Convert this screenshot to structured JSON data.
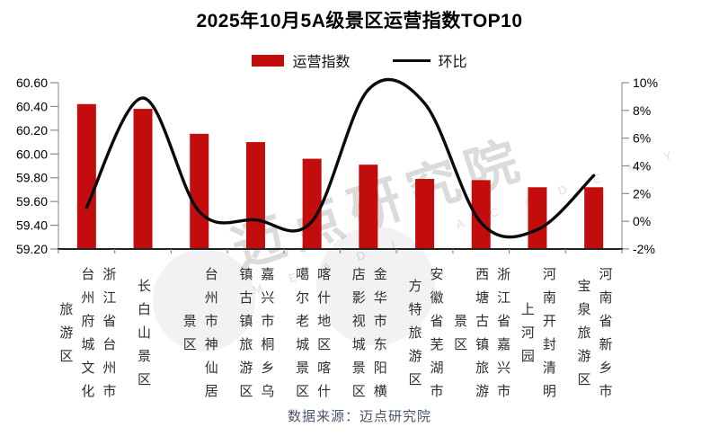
{
  "title": "2025年10月5A级景区运营指数TOP10",
  "legend": {
    "bar_label": "运营指数",
    "line_label": "环比"
  },
  "source_note": "数据来源：迈点研究院",
  "watermark": {
    "text": "迈点研究院",
    "subtext": "M E A D I N   A C A D E M Y"
  },
  "colors": {
    "bar": "#c30d0d",
    "line": "#0a0a0a",
    "spine": "#9a9a9a",
    "bottom_axis": "#222222",
    "tick": "#8a8a8a",
    "axis_text": "#000000",
    "category_text": "#2e2e2e",
    "source_text": "#4a566b"
  },
  "chart_data": {
    "type": "bar+line",
    "title": "2025年10月5A级景区运营指数TOP10",
    "categories": [
      "浙江省台州市台州府城文化旅游区",
      "长白山景区",
      "台州市神仙居景区",
      "嘉兴市桐乡乌镇古镇旅游区",
      "喀什地区喀什噶尔老城景区",
      "金华市东阳横店影视城景区",
      "安徽省芜湖市方特旅游区",
      "浙江省嘉兴市西塘古镇旅游景区",
      "河南开封清明上河园",
      "河南省新乡市宝泉旅游区"
    ],
    "series": [
      {
        "name": "运营指数",
        "type": "bar",
        "axis": "left",
        "values": [
          60.42,
          60.38,
          60.17,
          60.1,
          59.96,
          59.91,
          59.79,
          59.78,
          59.72,
          59.72
        ]
      },
      {
        "name": "环比",
        "type": "line",
        "axis": "right",
        "unit": "%",
        "values": [
          1.0,
          8.9,
          0.7,
          0.1,
          0.0,
          9.5,
          8.5,
          -0.1,
          -0.6,
          3.3
        ]
      }
    ],
    "left_axis": {
      "min": 59.2,
      "max": 60.6,
      "step": 0.2,
      "tick_labels": [
        "60.60",
        "60.40",
        "60.20",
        "60.00",
        "59.80",
        "59.60",
        "59.40",
        "59.20"
      ]
    },
    "right_axis": {
      "min": -2,
      "max": 10,
      "step": 2,
      "tick_labels": [
        "10%",
        "8%",
        "6%",
        "4%",
        "2%",
        "0%",
        "-2%"
      ]
    },
    "grid": false,
    "legend_position": "top"
  }
}
